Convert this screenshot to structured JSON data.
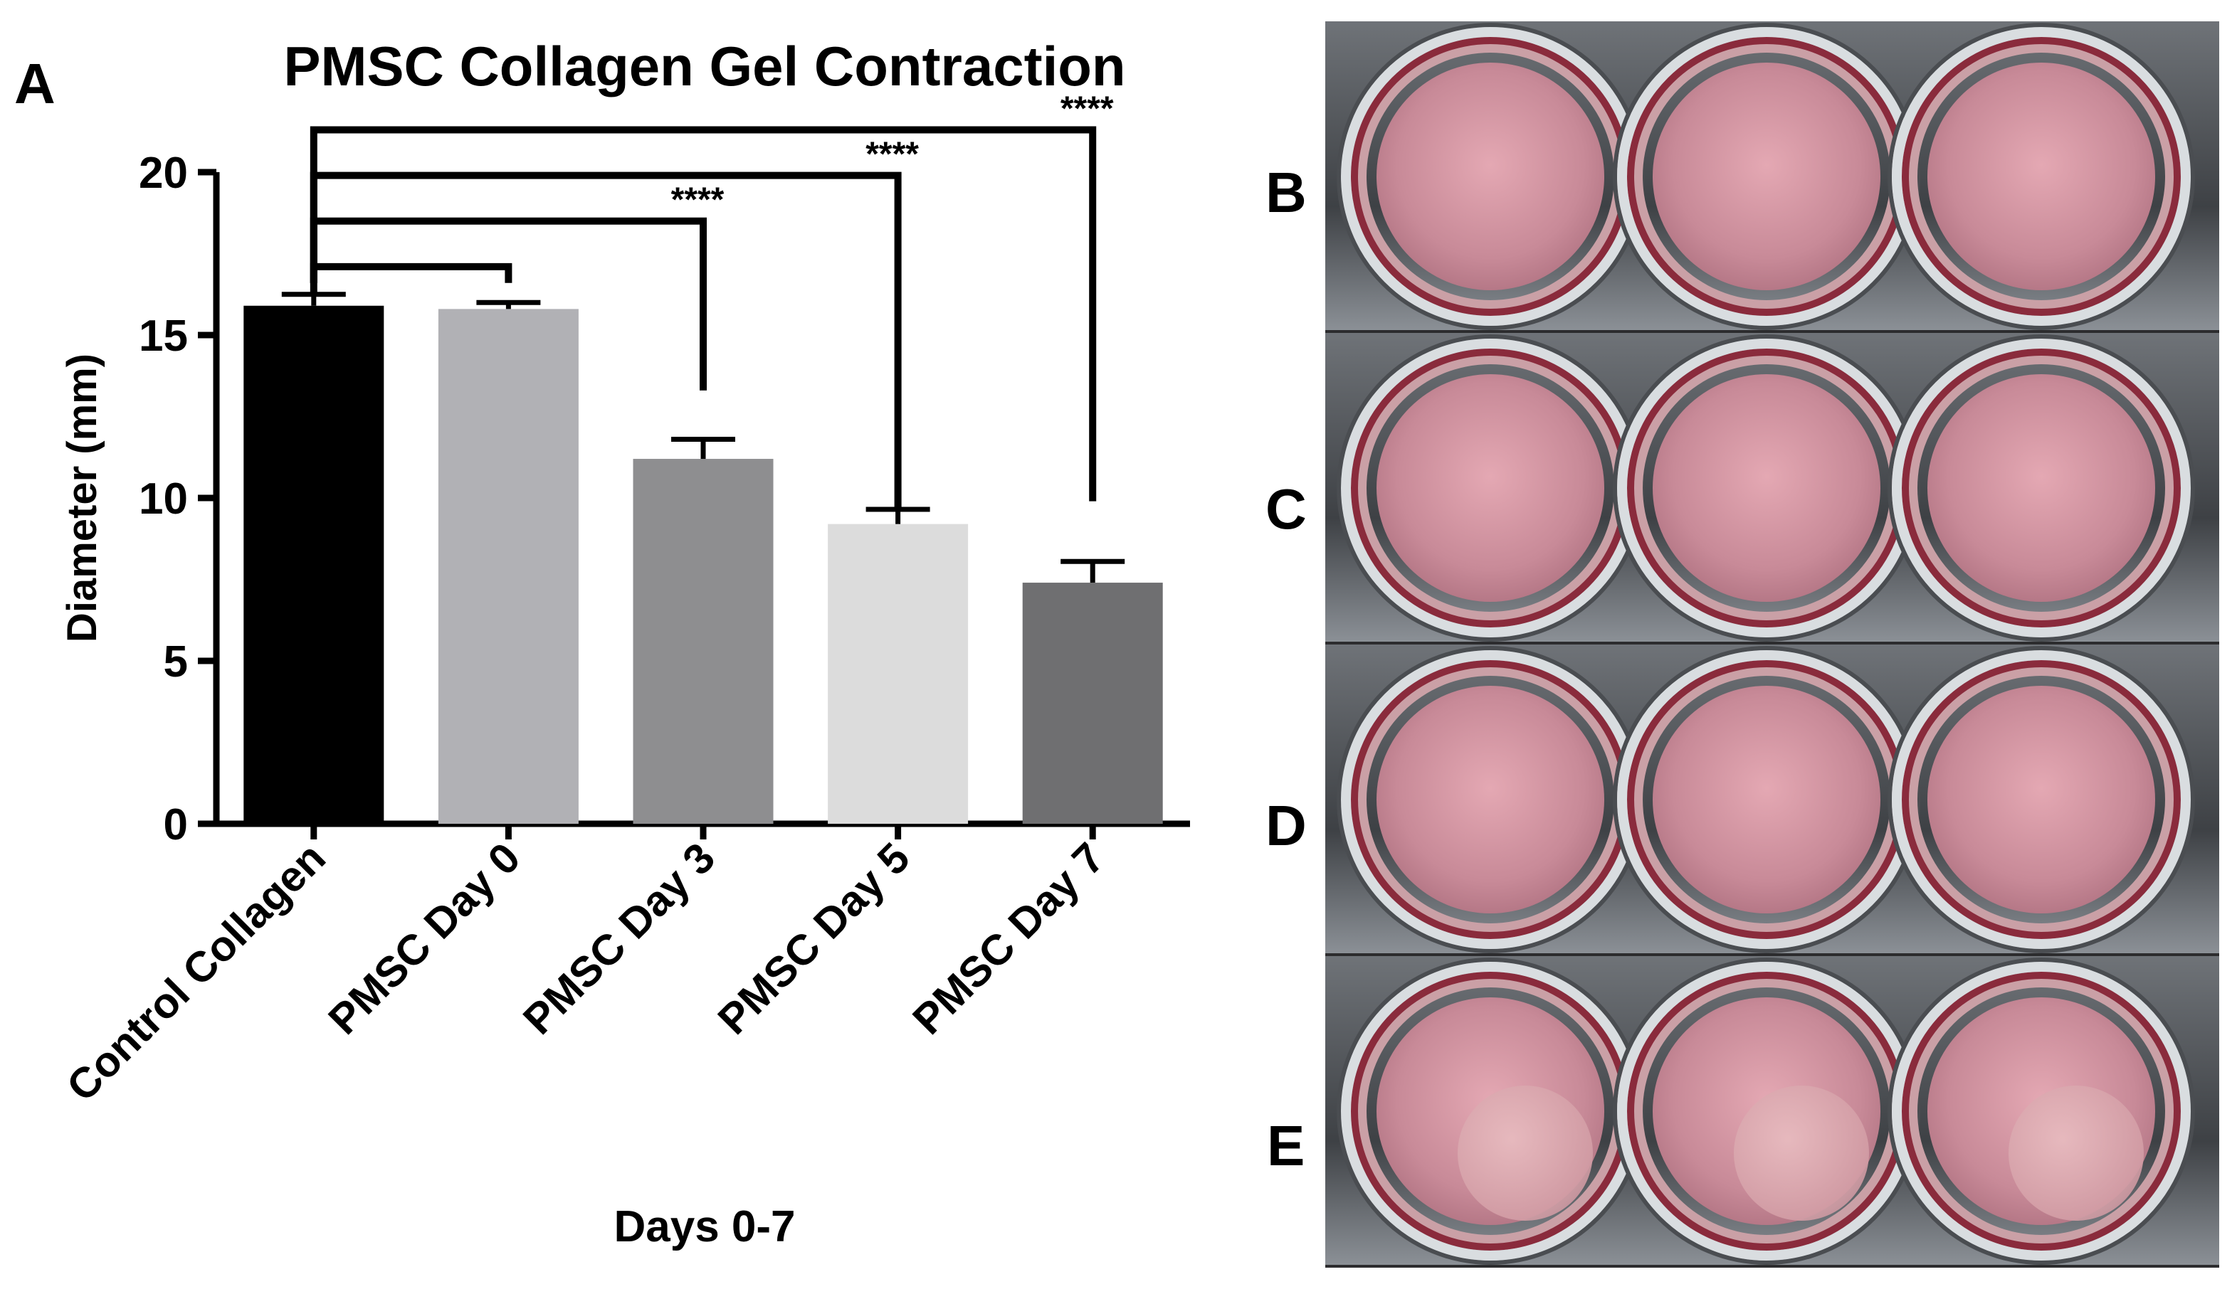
{
  "chart_data": {
    "type": "bar",
    "panel_label": "A",
    "title": "PMSC Collagen Gel Contraction",
    "xlabel": "Days 0-7",
    "ylabel": "Diameter (mm)",
    "ylim": [
      0,
      20
    ],
    "yticks": [
      0,
      5,
      10,
      15,
      20
    ],
    "categories": [
      "Control Collagen",
      "PMSC Day 0",
      "PMSC Day 3",
      "PMSC Day 5",
      "PMSC Day 7"
    ],
    "values": [
      15.9,
      15.8,
      11.2,
      9.2,
      7.4
    ],
    "errors": [
      0.35,
      0.2,
      0.6,
      0.45,
      0.65
    ],
    "bar_colors": [
      "#000000",
      "#b1b1b5",
      "#8e8e90",
      "#dcdcdc",
      "#6f6f71"
    ],
    "significance": [
      {
        "from": 0,
        "to": 1,
        "label": ""
      },
      {
        "from": 0,
        "to": 2,
        "label": "****"
      },
      {
        "from": 0,
        "to": 3,
        "label": "****"
      },
      {
        "from": 0,
        "to": 4,
        "label": "****"
      }
    ]
  },
  "photo_panels": [
    "B",
    "C",
    "D",
    "E"
  ]
}
